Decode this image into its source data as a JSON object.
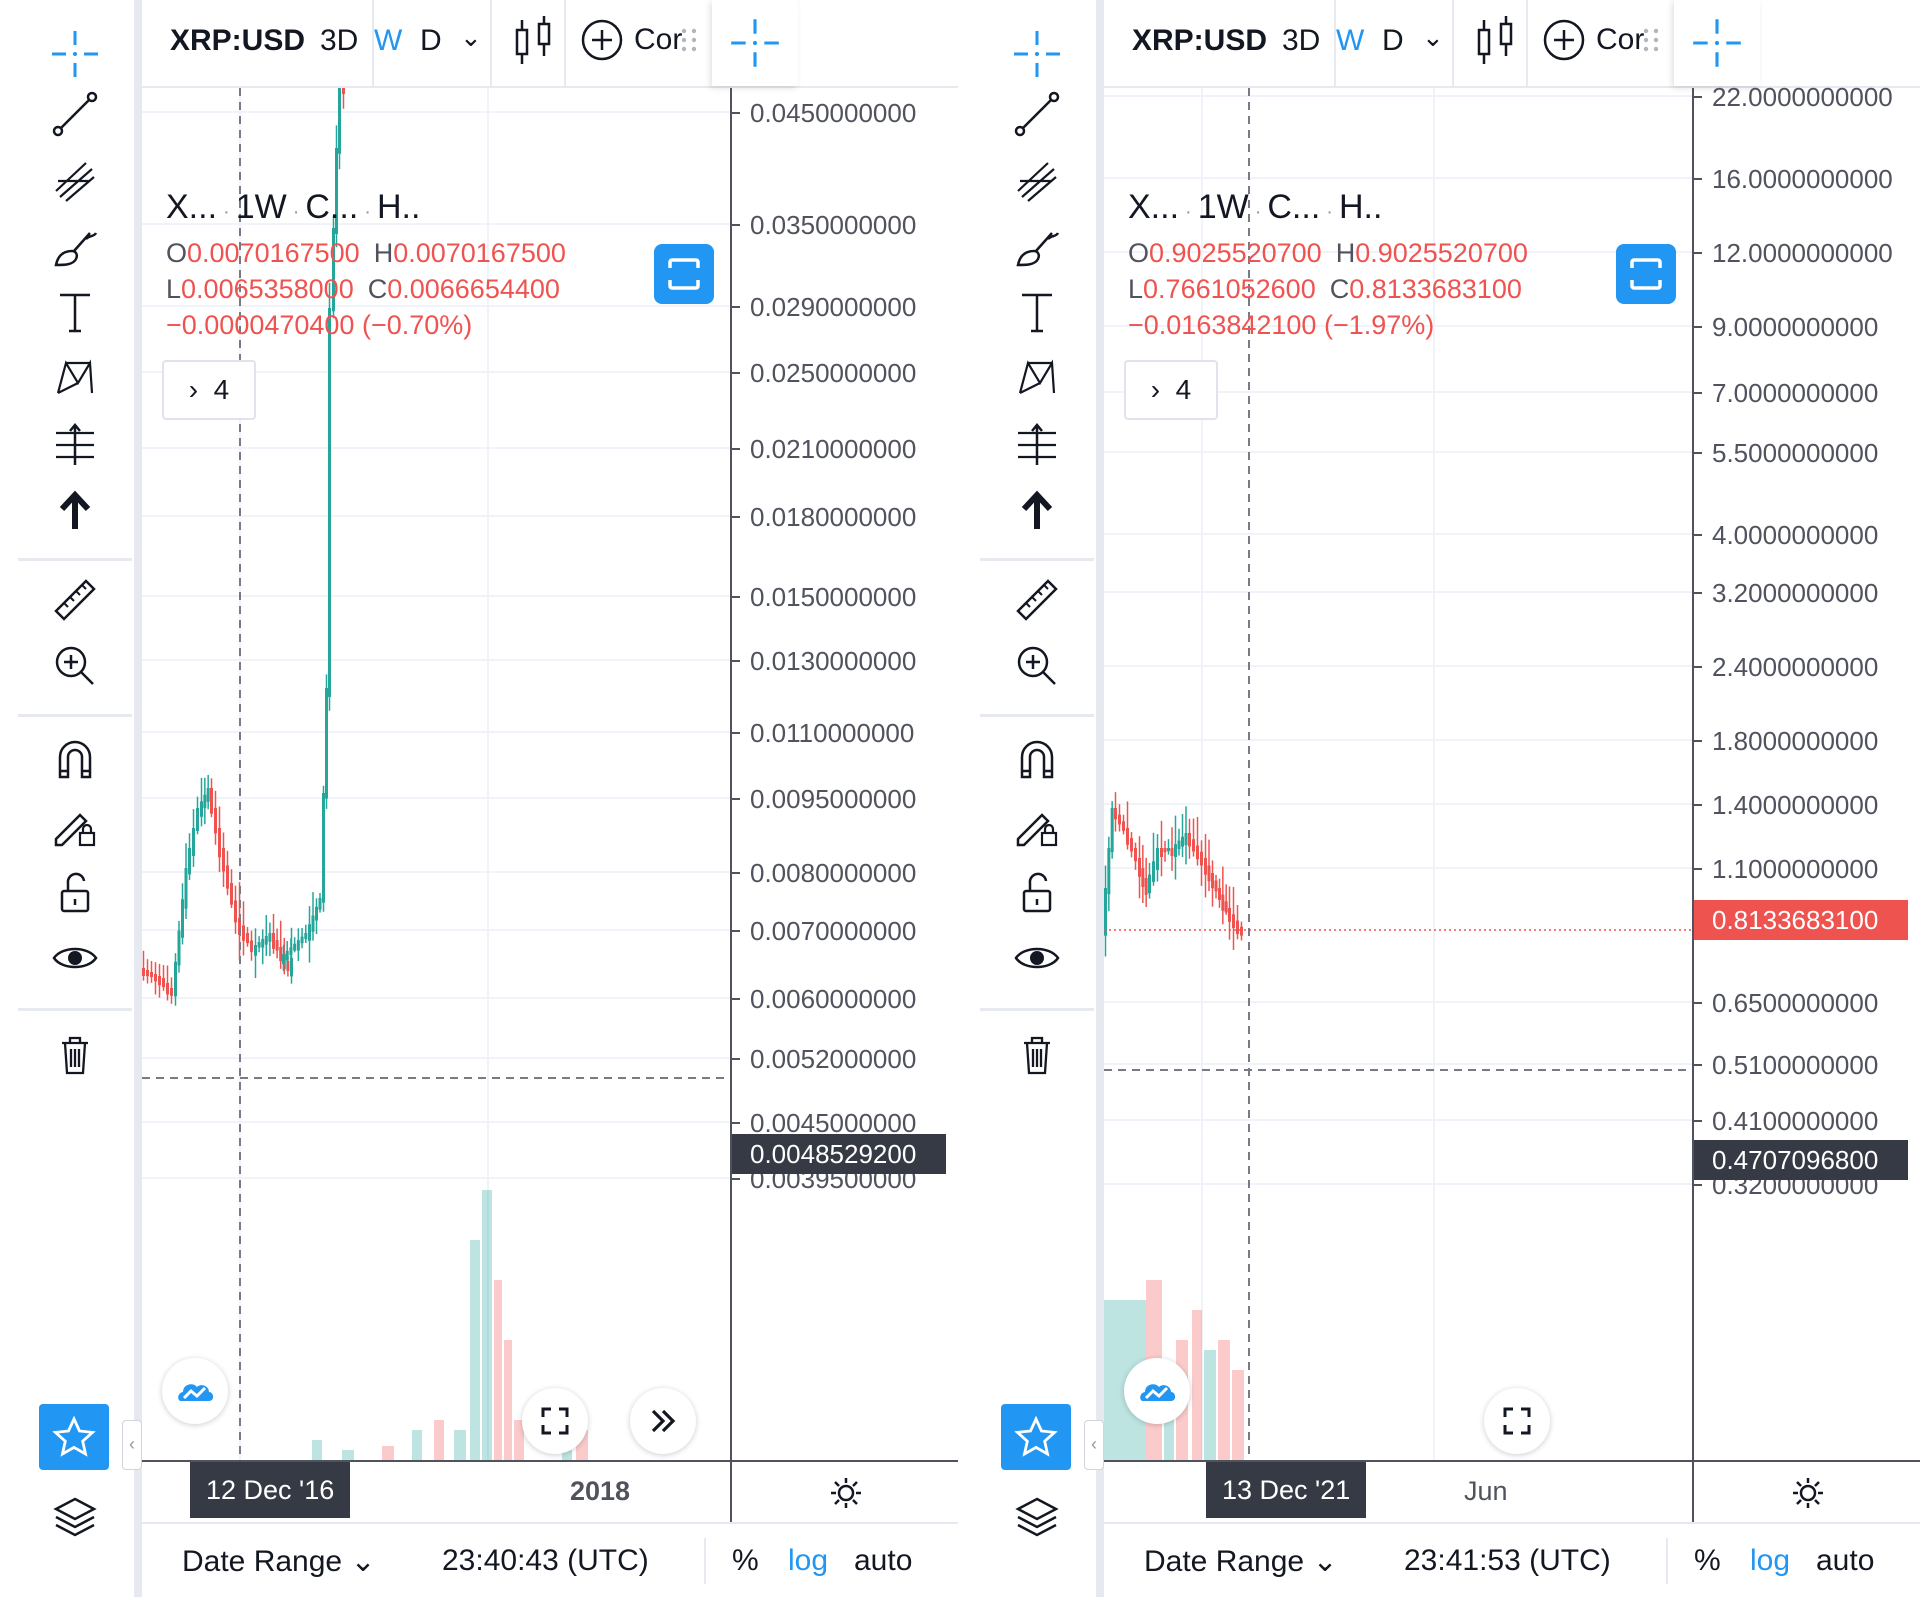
{
  "panels": [
    {
      "symbol": "XRP:USD",
      "intervals": [
        "3D",
        "W",
        "D"
      ],
      "active_interval": "W",
      "compare_label": "Cor",
      "legend": {
        "short_symbol": "X...",
        "interval": "1W",
        "exchange": "C...",
        "source": "H.."
      },
      "ohlc": {
        "o_key": "O",
        "o_val": "0.0070167500",
        "h_key": "H",
        "h_val": "0.0070167500",
        "l_key": "L",
        "l_val": "0.0065358000",
        "c_key": "C",
        "c_val": "0.0066654400",
        "change": "−0.0000470400 (−0.70%)"
      },
      "indicators_count": "4",
      "price_axis": [
        "0.0450000000",
        "0.0350000000",
        "0.0290000000",
        "0.0250000000",
        "0.0210000000",
        "0.0180000000",
        "0.0150000000",
        "0.0130000000",
        "0.0110000000",
        "0.0095000000",
        "0.0080000000",
        "0.0070000000",
        "0.0060000000",
        "0.0052000000",
        "0.0045000000",
        "0.0039500000"
      ],
      "crosshair_price": "0.0048529200",
      "time_axis": {
        "crosshair_date": "12 Dec '16",
        "label": "2018"
      },
      "bottom": {
        "date_range": "Date Range",
        "clock": "23:40:43 (UTC)",
        "percent": "%",
        "log": "log",
        "auto": "auto"
      }
    },
    {
      "symbol": "XRP:USD",
      "intervals": [
        "3D",
        "W",
        "D"
      ],
      "active_interval": "W",
      "compare_label": "Cor",
      "legend": {
        "short_symbol": "X...",
        "interval": "1W",
        "exchange": "C...",
        "source": "H.."
      },
      "ohlc": {
        "o_key": "O",
        "o_val": "0.9025520700",
        "h_key": "H",
        "h_val": "0.9025520700",
        "l_key": "L",
        "l_val": "0.7661052600",
        "c_key": "C",
        "c_val": "0.8133683100",
        "change": "−0.0163842100 (−1.97%)"
      },
      "indicators_count": "4",
      "price_axis": [
        "22.0000000000",
        "16.0000000000",
        "12.0000000000",
        "9.0000000000",
        "7.0000000000",
        "5.5000000000",
        "4.0000000000",
        "3.2000000000",
        "2.4000000000",
        "1.8000000000",
        "1.4000000000",
        "1.1000000000",
        "0.6500000000",
        "0.5100000000",
        "0.4100000000",
        "0.3200000000"
      ],
      "last_price": "0.8133683100",
      "crosshair_price": "0.4707096800",
      "time_axis": {
        "crosshair_date": "13 Dec '21",
        "label": "Jun"
      },
      "bottom": {
        "date_range": "Date Range",
        "clock": "23:41:53 (UTC)",
        "percent": "%",
        "log": "log",
        "auto": "auto"
      }
    }
  ],
  "colors": {
    "up": "#26a69a",
    "down": "#ef5350",
    "accent": "#2196f3",
    "tag": "#363a45"
  },
  "icons": [
    "crosshair-icon",
    "trend-line-icon",
    "fib-icon",
    "brush-icon",
    "text-icon",
    "pattern-icon",
    "forecast-icon",
    "arrow-up-icon",
    "ruler-icon",
    "zoom-in-icon",
    "magnet-icon",
    "lock-draw-icon",
    "lock-icon",
    "eye-icon",
    "trash-icon",
    "star-icon",
    "layers-icon"
  ]
}
